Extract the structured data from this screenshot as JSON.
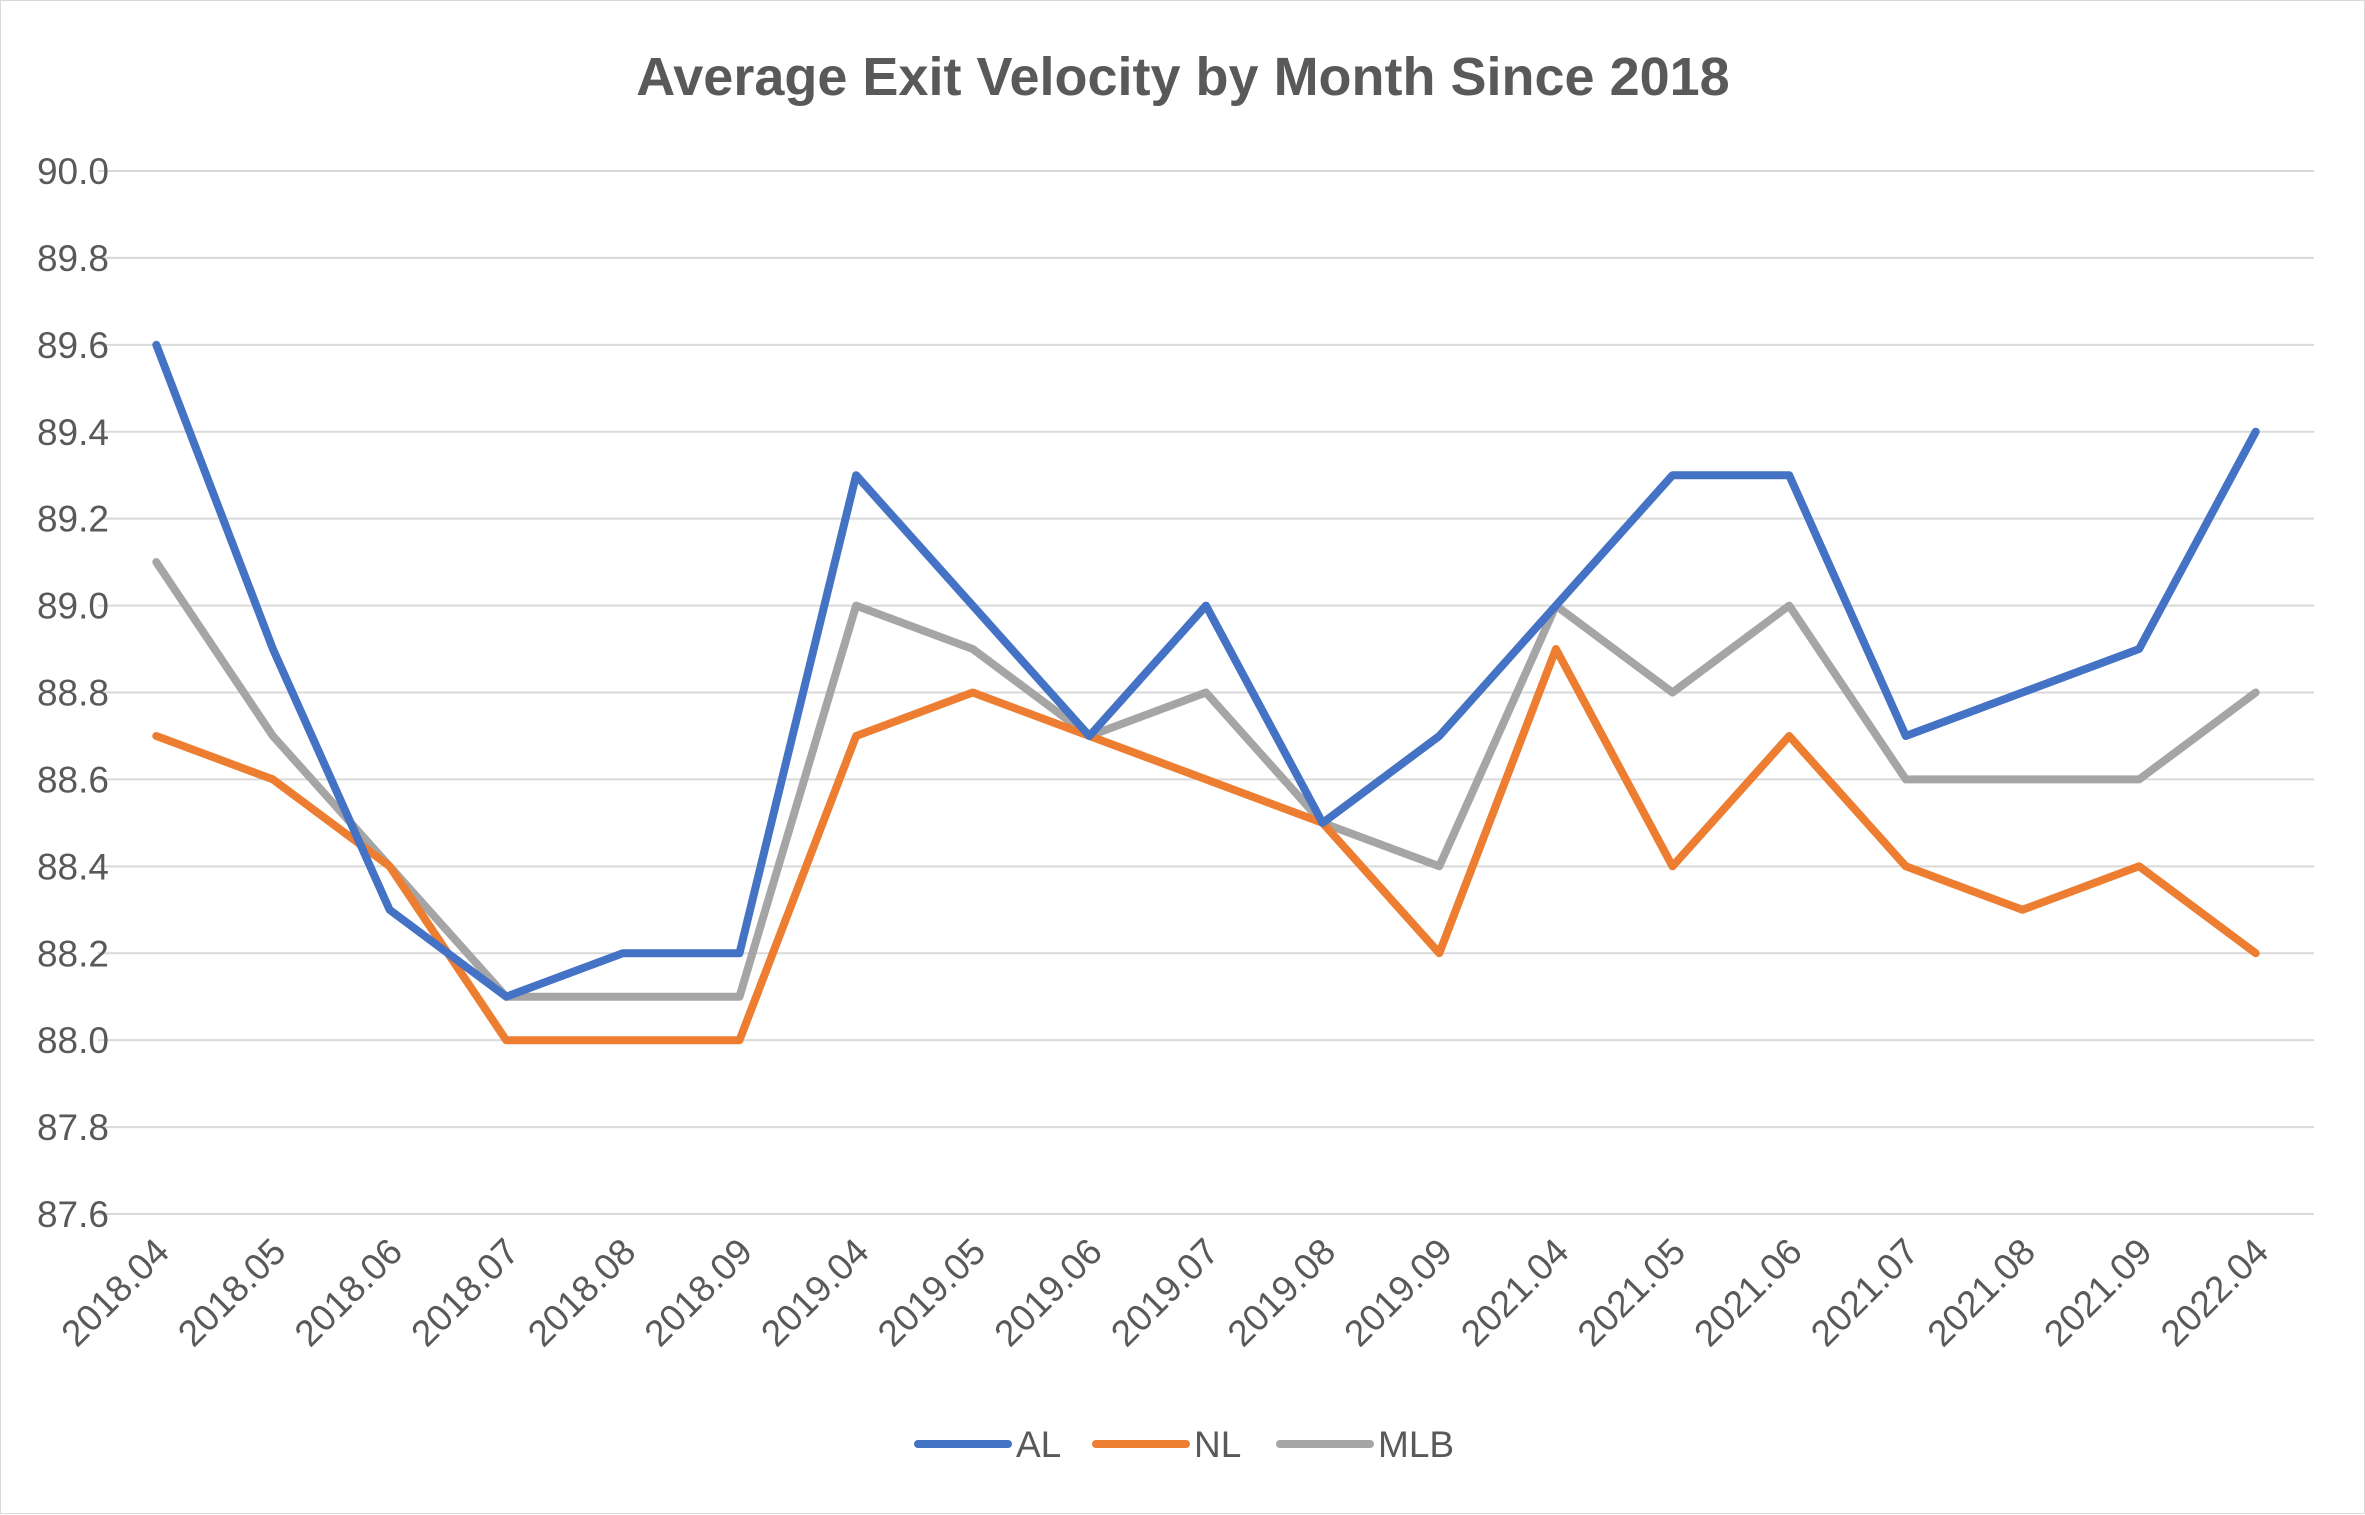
{
  "chart_data": {
    "type": "line",
    "title": "Average Exit Velocity by Month Since 2018",
    "xlabel": "",
    "ylabel": "",
    "categories": [
      "2018.04",
      "2018.05",
      "2018.06",
      "2018.07",
      "2018.08",
      "2018.09",
      "2019.04",
      "2019.05",
      "2019.06",
      "2019.07",
      "2019.08",
      "2019.09",
      "2021.04",
      "2021.05",
      "2021.06",
      "2021.07",
      "2021.08",
      "2021.09",
      "2022.04"
    ],
    "ylim": [
      87.6,
      90.0
    ],
    "yticks": [
      "87.6",
      "87.8",
      "88.0",
      "88.2",
      "88.4",
      "88.6",
      "88.8",
      "89.0",
      "89.2",
      "89.4",
      "89.6",
      "89.8",
      "90.0"
    ],
    "grid": "horizontal",
    "legend_position": "bottom",
    "series": [
      {
        "name": "AL",
        "color": "#4472c4",
        "values": [
          89.6,
          88.9,
          88.3,
          88.1,
          88.2,
          88.2,
          89.3,
          89.0,
          88.7,
          89.0,
          88.5,
          88.7,
          89.0,
          89.3,
          89.3,
          88.7,
          88.8,
          88.9,
          89.4
        ]
      },
      {
        "name": "NL",
        "color": "#ed7d31",
        "values": [
          88.7,
          88.6,
          88.4,
          88.0,
          88.0,
          88.0,
          88.7,
          88.8,
          88.7,
          88.6,
          88.5,
          88.2,
          88.9,
          88.4,
          88.7,
          88.4,
          88.3,
          88.4,
          88.2
        ]
      },
      {
        "name": "MLB",
        "color": "#a5a5a5",
        "values": [
          89.1,
          88.7,
          88.4,
          88.1,
          88.1,
          88.1,
          89.0,
          88.9,
          88.7,
          88.8,
          88.5,
          88.4,
          89.0,
          88.8,
          89.0,
          88.6,
          88.6,
          88.6,
          88.8
        ]
      }
    ]
  }
}
